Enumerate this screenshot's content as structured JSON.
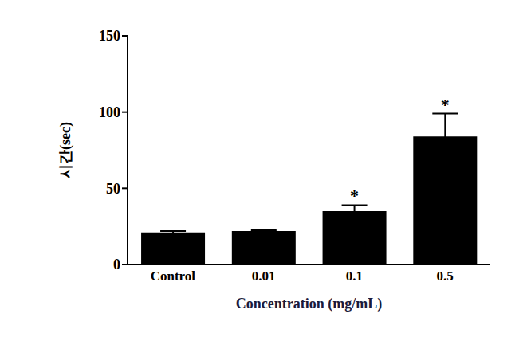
{
  "chart_data": {
    "type": "bar",
    "x_label": "Concentration (mg/mL)",
    "y_label": "시간(sec)",
    "categories": [
      "Control",
      "0.01",
      "0.1",
      "0.5"
    ],
    "values": [
      21,
      22,
      35,
      84
    ],
    "errors": [
      1,
      0.5,
      4,
      15
    ],
    "color": "#000000",
    "ylim": [
      0,
      150
    ],
    "yticks": [
      0,
      50,
      100,
      150
    ],
    "grid": false,
    "annotations": [
      {
        "category": "0.1",
        "text": "*"
      },
      {
        "category": "0.5",
        "text": "*"
      }
    ]
  }
}
